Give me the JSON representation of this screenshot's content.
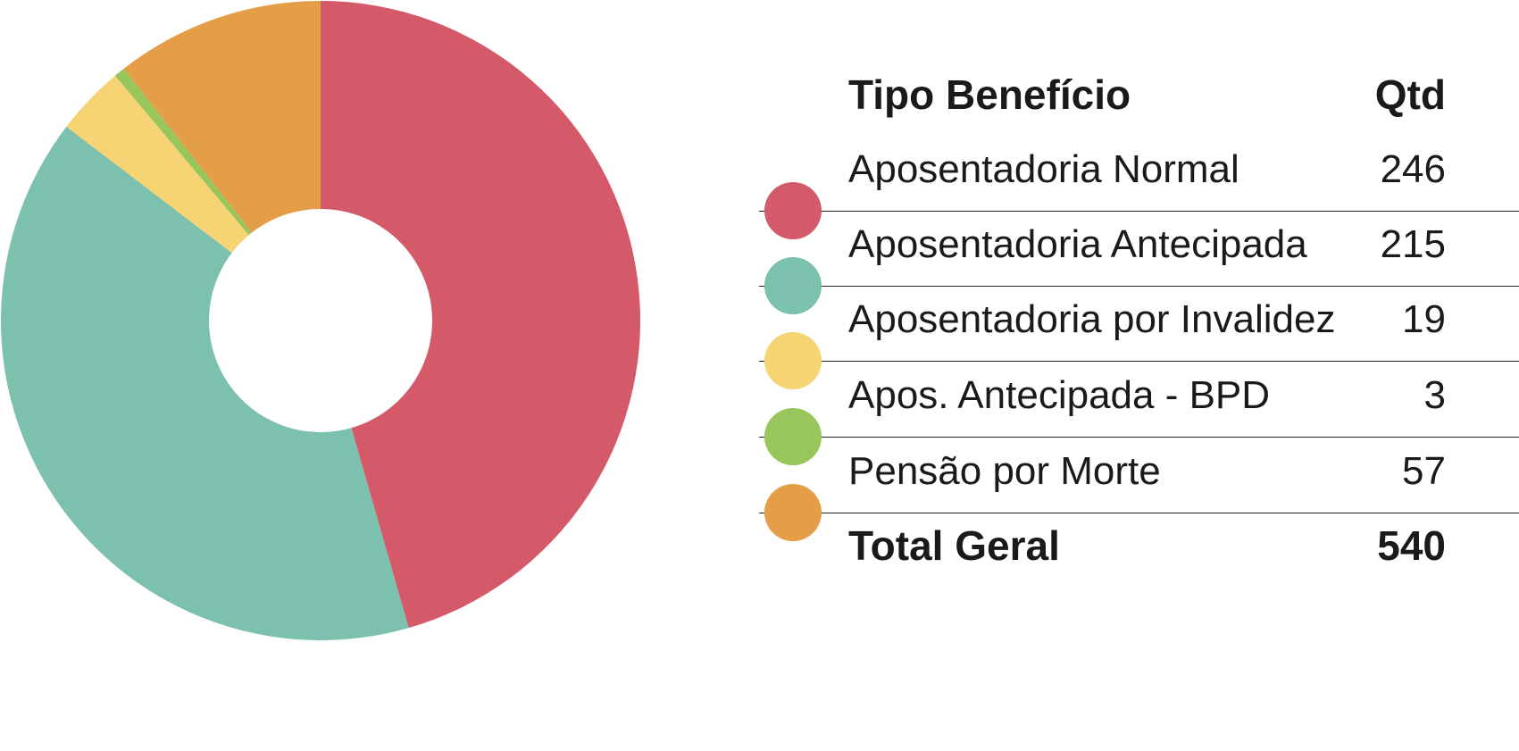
{
  "chart_data": {
    "type": "pie",
    "variant": "donut",
    "header": {
      "label": "Tipo Benefício",
      "value": "Qtd"
    },
    "slices": [
      {
        "label": "Aposentadoria Normal",
        "value": 246,
        "value_text": "246",
        "color": "#d45a6a"
      },
      {
        "label": "Aposentadoria Antecipada",
        "value": 215,
        "value_text": "215",
        "color": "#7cc0ae"
      },
      {
        "label": "Aposentadoria por Invalidez",
        "value": 19,
        "value_text": "19",
        "color": "#f6d373"
      },
      {
        "label": "Apos. Antecipada - BPD",
        "value": 3,
        "value_text": "3",
        "color": "#99c55d"
      },
      {
        "label": "Pensão por Morte",
        "value": 57,
        "value_text": "57",
        "color": "#e49e48"
      }
    ],
    "total": {
      "label": "Total Geral",
      "value": 540,
      "value_text": "540"
    },
    "start_angle": "12 o'clock",
    "direction": "clockwise",
    "legend_position": "right"
  }
}
